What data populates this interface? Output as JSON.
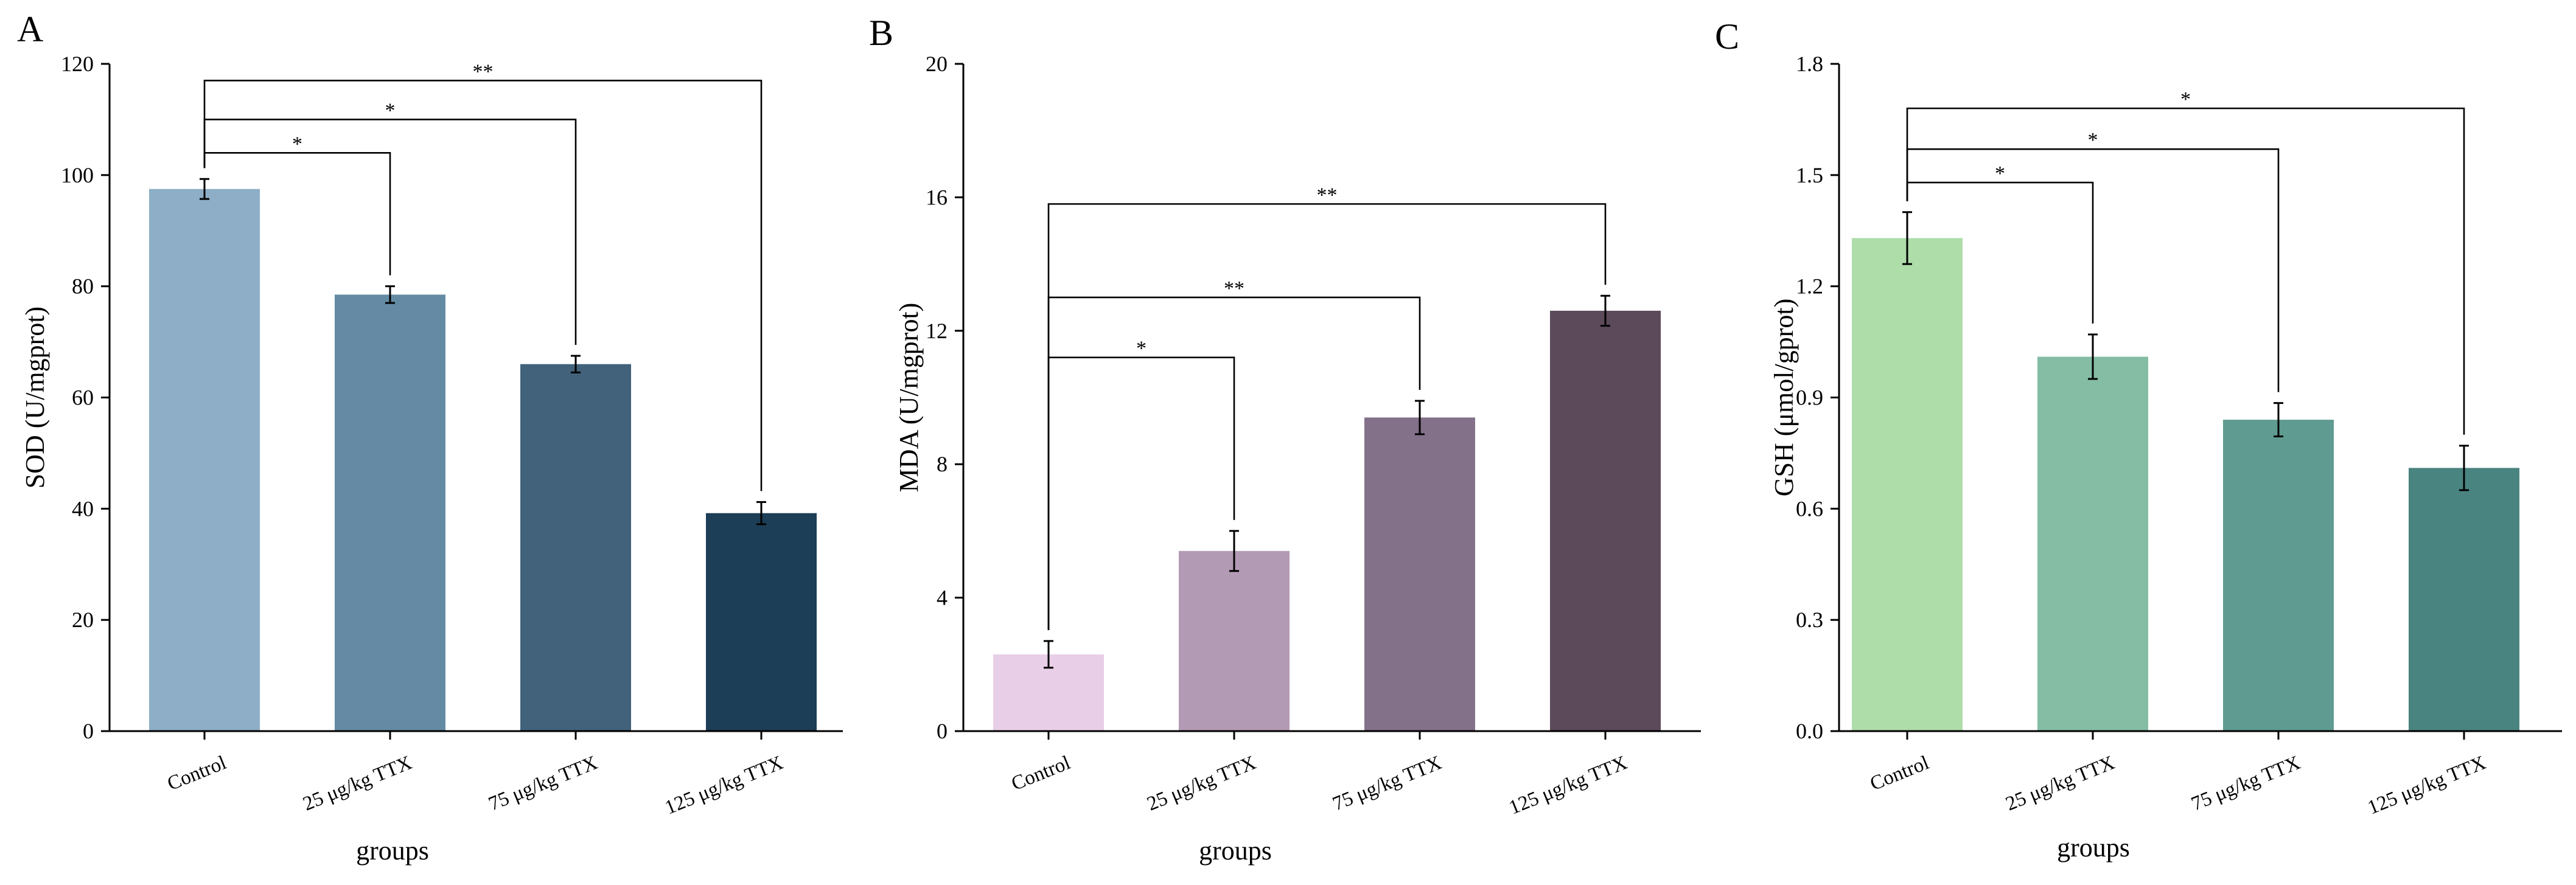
{
  "chart_data": [
    {
      "type": "bar",
      "panel": "A",
      "categories": [
        "Control",
        "25 μg/kg TTX",
        "75 μg/kg TTX",
        "125 μg/kg TTX"
      ],
      "values": [
        97.5,
        78.5,
        66,
        39.2
      ],
      "errors": [
        1.8,
        1.5,
        1.5,
        2.0
      ],
      "colors": [
        "#8daec6",
        "#648ba3",
        "#41627a",
        "#1c3e56"
      ],
      "xlabel": "groups",
      "ylabel": "SOD (U/mgprot)",
      "ylim": [
        0,
        120
      ],
      "yticks": [
        "0",
        "20",
        "40",
        "60",
        "80",
        "100",
        "120"
      ],
      "ytick_values": [
        0,
        20,
        40,
        60,
        80,
        100,
        120
      ],
      "grid": false,
      "significance": [
        {
          "from": 0,
          "to": 1,
          "label": "*",
          "level": 104
        },
        {
          "from": 0,
          "to": 2,
          "label": "*",
          "level": 110
        },
        {
          "from": 0,
          "to": 3,
          "label": "**",
          "level": 117
        }
      ]
    },
    {
      "type": "bar",
      "panel": "B",
      "categories": [
        "Control",
        "25 μg/kg TTX",
        "75 μg/kg TTX",
        "125 μg/kg TTX"
      ],
      "values": [
        2.3,
        5.4,
        9.4,
        12.6
      ],
      "errors": [
        0.4,
        0.6,
        0.5,
        0.45
      ],
      "colors": [
        "#e8cfe7",
        "#b39ab4",
        "#837089",
        "#5c4a5a"
      ],
      "xlabel": "groups",
      "ylabel": "MDA (U/mgprot)",
      "ylim": [
        0,
        20
      ],
      "yticks": [
        "0",
        "4",
        "8",
        "12",
        "16",
        "20"
      ],
      "ytick_values": [
        0,
        4,
        8,
        12,
        16,
        20
      ],
      "grid": false,
      "significance": [
        {
          "from": 0,
          "to": 1,
          "label": "*",
          "level": 11.2
        },
        {
          "from": 0,
          "to": 2,
          "label": "**",
          "level": 13.0
        },
        {
          "from": 0,
          "to": 3,
          "label": "**",
          "level": 15.8
        }
      ]
    },
    {
      "type": "bar",
      "panel": "C",
      "categories": [
        "Control",
        "25 μg/kg TTX",
        "75 μg/kg TTX",
        "125 μg/kg TTX"
      ],
      "values": [
        1.33,
        1.01,
        0.84,
        0.71
      ],
      "errors": [
        0.07,
        0.06,
        0.045,
        0.06
      ],
      "colors": [
        "#aedda9",
        "#84bda4",
        "#5f9b90",
        "#4a8480"
      ],
      "xlabel": "groups",
      "ylabel": "GSH (μmol/gprot)",
      "ylim": [
        0,
        1.8
      ],
      "yticks": [
        "0.0",
        "0.3",
        "0.6",
        "0.9",
        "1.2",
        "1.5",
        "1.8"
      ],
      "ytick_values": [
        0,
        0.3,
        0.6,
        0.9,
        1.2,
        1.5,
        1.8
      ],
      "grid": false,
      "significance": [
        {
          "from": 0,
          "to": 1,
          "label": "*",
          "level": 1.48
        },
        {
          "from": 0,
          "to": 2,
          "label": "*",
          "level": 1.57
        },
        {
          "from": 0,
          "to": 3,
          "label": "*",
          "level": 1.68
        }
      ]
    }
  ]
}
